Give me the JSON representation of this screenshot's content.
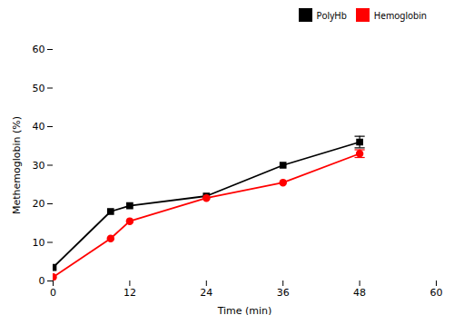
{
  "chart_data": {
    "type": "line",
    "x": [
      0,
      9,
      12,
      24,
      36,
      48
    ],
    "series": [
      {
        "name": "PolyHb",
        "color": "#000000",
        "marker": "square",
        "line_style": "solid",
        "values": [
          3.5,
          18.0,
          19.5,
          22.0,
          30.0,
          36.0
        ],
        "errors": [
          0.0,
          0.0,
          0.0,
          0.0,
          0.0,
          1.5
        ]
      },
      {
        "name": "Hemoglobin",
        "color": "#ff0000",
        "marker": "circle",
        "line_style": "solid",
        "values": [
          1.0,
          11.0,
          15.5,
          21.5,
          25.5,
          33.0
        ],
        "errors": [
          0.0,
          0.0,
          0.0,
          0.0,
          0.0,
          1.0
        ]
      }
    ],
    "xlabel": "Time (min)",
    "ylabel": "Methemoglobin (%)",
    "xlim": [
      0,
      60
    ],
    "ylim": [
      0,
      60
    ],
    "xticks": [
      0,
      12,
      24,
      36,
      48,
      60
    ],
    "yticks": [
      0,
      10,
      20,
      30,
      40,
      50,
      60
    ],
    "grid": false,
    "legend": "upper right"
  }
}
